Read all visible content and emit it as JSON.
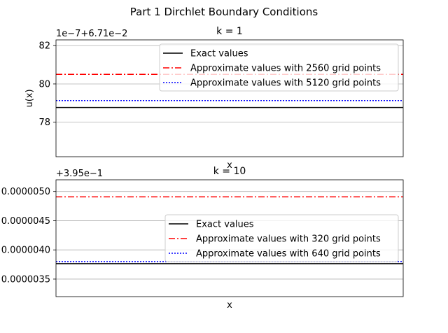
{
  "figure": {
    "suptitle": "Part 1 Dirchlet Boundary Conditions"
  },
  "chart_data": [
    {
      "type": "line",
      "title": "k = 1",
      "xlabel": "x",
      "ylabel": "u(x)",
      "offset_label": "1e−7+6.71e−2",
      "ylim": [
        76.2,
        82.3
      ],
      "yticks": [
        {
          "value": 78,
          "label": "78"
        },
        {
          "value": 80,
          "label": "80"
        },
        {
          "value": 82,
          "label": "82"
        }
      ],
      "xticks": [],
      "grid": "y",
      "legend_position": "upper-right",
      "series": [
        {
          "name": "Exact values",
          "values": [
            78.77,
            78.77
          ],
          "color": "#000000",
          "style": "solid"
        },
        {
          "name": "Approximate values with 2560 grid points",
          "values": [
            80.5,
            80.5
          ],
          "color": "#ff0000",
          "style": "dashdot"
        },
        {
          "name": "Approximate values with 5120 grid points",
          "values": [
            79.13,
            79.13
          ],
          "color": "#0000ff",
          "style": "dotted"
        }
      ]
    },
    {
      "type": "line",
      "title": "k = 10",
      "xlabel": "x",
      "ylabel": "",
      "offset_label": "+3.95e−1",
      "ylim": [
        3.2e-06,
        5.2e-06
      ],
      "yticks": [
        {
          "value": 3.5e-06,
          "label": "0.0000035"
        },
        {
          "value": 4e-06,
          "label": "0.0000040"
        },
        {
          "value": 4.5e-06,
          "label": "0.0000045"
        },
        {
          "value": 5e-06,
          "label": "0.0000050"
        }
      ],
      "xticks": [],
      "grid": "y",
      "legend_position": "center-right",
      "series": [
        {
          "name": "Exact values",
          "values": [
            3.765e-06,
            3.765e-06
          ],
          "color": "#000000",
          "style": "solid"
        },
        {
          "name": "Approximate values with 320 grid points",
          "values": [
            4.908e-06,
            4.908e-06
          ],
          "color": "#ff0000",
          "style": "dashdot"
        },
        {
          "name": "Approximate values with 640 grid points",
          "values": [
            3.8e-06,
            3.8e-06
          ],
          "color": "#0000ff",
          "style": "dotted"
        }
      ]
    }
  ]
}
